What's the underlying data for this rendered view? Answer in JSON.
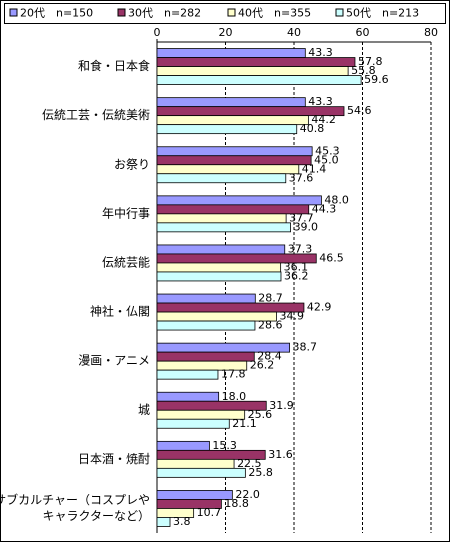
{
  "chart_data": {
    "type": "bar",
    "orientation": "horizontal",
    "categories": [
      "和食・日本食",
      "伝統工芸・伝統美術",
      "お祭り",
      "年中行事",
      "伝統芸能",
      "神社・仏閣",
      "漫画・アニメ",
      "城",
      "日本酒・焼酎",
      [
        "サブカルチャー（コスプレや",
        "キャラクターなど）"
      ]
    ],
    "series": [
      {
        "name": "20代　n=150",
        "color": "#9999ff",
        "values": [
          43.3,
          43.3,
          45.3,
          48.0,
          37.3,
          28.7,
          38.7,
          18.0,
          15.3,
          22.0
        ],
        "value_labels": [
          "43.3",
          "43.3",
          "45.3",
          "48.0",
          "37.3",
          "28.7",
          "38.7",
          "18.0",
          "15.3",
          "22.0"
        ]
      },
      {
        "name": "30代　n=282",
        "color": "#993366",
        "values": [
          57.8,
          54.6,
          45.0,
          44.3,
          46.5,
          42.9,
          28.4,
          31.9,
          31.6,
          18.8
        ],
        "value_labels": [
          "57.8",
          "54.6",
          "45.0",
          "44.3",
          "46.5",
          "42.9",
          "28.4",
          "31.9",
          "31.6",
          "18.8"
        ]
      },
      {
        "name": "40代　n=355",
        "color": "#ffffcc",
        "values": [
          55.8,
          44.2,
          41.4,
          37.7,
          36.1,
          34.9,
          26.2,
          25.6,
          22.5,
          10.7
        ],
        "value_labels": [
          "55.8",
          "44.2",
          "41.4",
          "37.7",
          "36.1",
          "34.9",
          "26.2",
          "25.6",
          "22.5",
          "10.7"
        ]
      },
      {
        "name": "50代　n=213",
        "color": "#ccffff",
        "values": [
          59.6,
          40.8,
          37.6,
          39.0,
          36.2,
          28.6,
          17.8,
          21.1,
          25.8,
          3.8
        ],
        "value_labels": [
          "59.6",
          "40.8",
          "37.6",
          "39.0",
          "36.2",
          "28.6",
          "17.8",
          "21.1",
          "25.8",
          "3.8"
        ]
      }
    ],
    "xlim": [
      0,
      80
    ],
    "xticks": [
      0,
      20,
      40,
      60,
      80
    ],
    "grid": true
  }
}
